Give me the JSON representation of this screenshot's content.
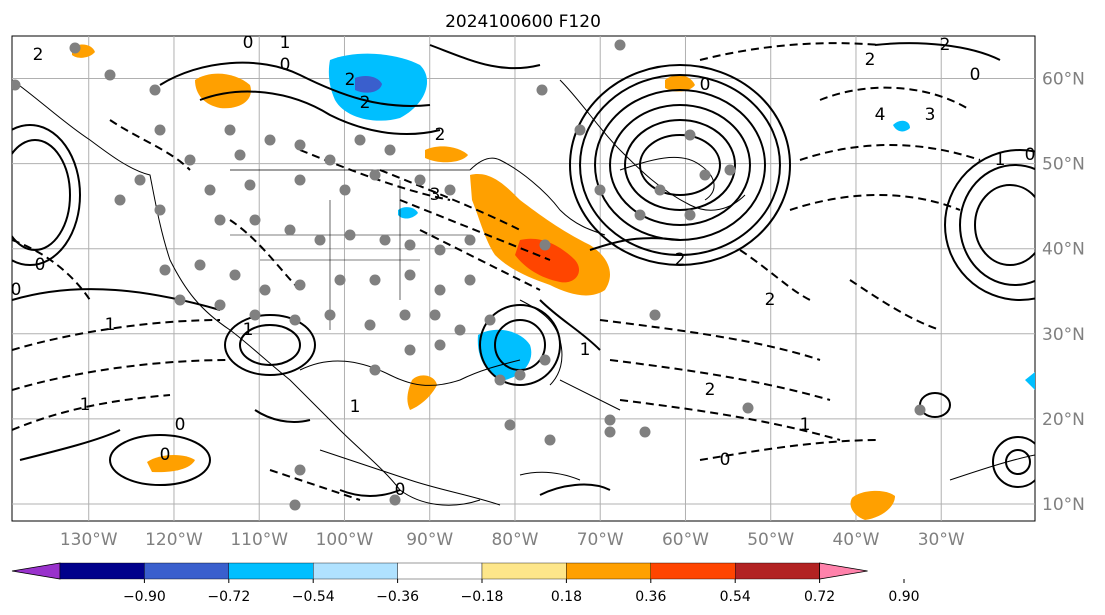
{
  "title": "2024100600 F120",
  "map": {
    "lon_labels": [
      "130°W",
      "120°W",
      "110°W",
      "100°W",
      "90°W",
      "80°W",
      "70°W",
      "60°W",
      "50°W",
      "40°W",
      "30°W"
    ],
    "lon_values": [
      -130,
      -120,
      -110,
      -100,
      -90,
      -80,
      -70,
      -60,
      -50,
      -40,
      -30
    ],
    "lat_labels": [
      "60°N",
      "50°N",
      "40°N",
      "30°N",
      "20°N",
      "10°N"
    ],
    "lat_values": [
      60,
      50,
      40,
      30,
      20,
      10
    ],
    "extent": {
      "lon_min": -139,
      "lon_max": -19,
      "lat_min": 8,
      "lat_max": 65
    }
  },
  "colorbar": {
    "tick_labels": [
      "−0.90",
      "−0.72",
      "−0.54",
      "−0.36",
      "−0.18",
      "0.18",
      "0.36",
      "0.54",
      "0.72",
      "0.90"
    ],
    "colors": [
      "#9932cc",
      "#00008b",
      "#3a5fcd",
      "#00bfff",
      "#b0e2ff",
      "#ffffff",
      "#fde68a",
      "#ffa000",
      "#ff4500",
      "#b22222",
      "#ff82ab"
    ],
    "extend": "both"
  },
  "contour_labels": [
    "2",
    "1",
    "0",
    "2",
    "2",
    "0",
    "2",
    "3",
    "1",
    "0",
    "4",
    "3",
    "0",
    "2",
    "2",
    "1",
    "0",
    "1",
    "0",
    "0",
    "2",
    "1",
    "2",
    "1",
    "0",
    "1",
    "0",
    "0",
    "0",
    "1",
    "0",
    "2"
  ]
}
